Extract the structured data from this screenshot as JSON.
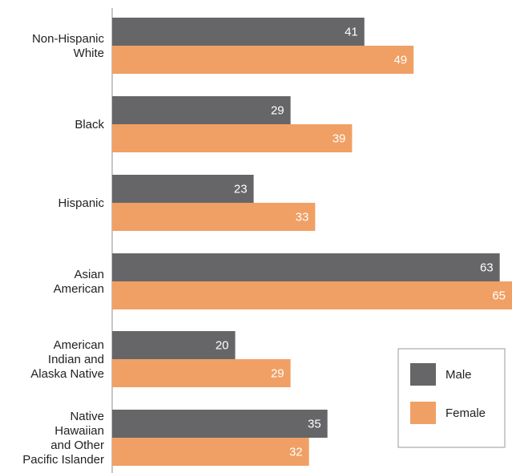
{
  "chart_data": {
    "type": "bar",
    "orientation": "horizontal",
    "categories": [
      [
        "Non-Hispanic",
        "White"
      ],
      [
        "Black"
      ],
      [
        "Hispanic"
      ],
      [
        "Asian",
        "American"
      ],
      [
        "American",
        "Indian and",
        "Alaska Native"
      ],
      [
        "Native",
        "Hawaiian",
        "and Other",
        "Pacific Islander"
      ]
    ],
    "series": [
      {
        "name": "Male",
        "color": "#666669",
        "values": [
          41,
          29,
          23,
          63,
          20,
          35
        ]
      },
      {
        "name": "Female",
        "color": "#f0a064",
        "values": [
          49,
          39,
          33,
          65,
          29,
          32
        ]
      }
    ],
    "xlim": [
      0,
      65
    ],
    "grid": false,
    "legend_position": "bottom-right"
  }
}
